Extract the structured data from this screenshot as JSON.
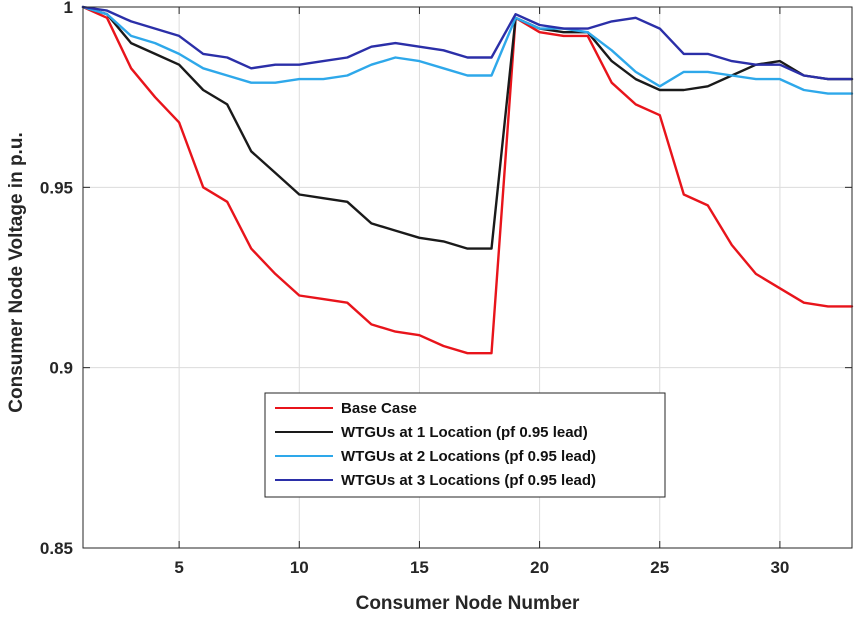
{
  "chart_data": {
    "type": "line",
    "title": "",
    "xlabel": "Consumer Node Number",
    "ylabel": "Consumer Node Voltage in p.u.",
    "xlim": [
      1,
      33
    ],
    "ylim": [
      0.85,
      1.0
    ],
    "grid": true,
    "xticks": [
      5,
      10,
      15,
      20,
      25,
      30
    ],
    "xtick_labels": [
      "5",
      "10",
      "15",
      "20",
      "25",
      "30"
    ],
    "yticks": [
      0.85,
      0.9,
      0.95,
      1.0
    ],
    "ytick_labels": [
      "0.85",
      "0.9",
      "0.95",
      "1"
    ],
    "legend_position": "bottom-center",
    "x": [
      1,
      2,
      3,
      4,
      5,
      6,
      7,
      8,
      9,
      10,
      11,
      12,
      13,
      14,
      15,
      16,
      17,
      18,
      19,
      20,
      21,
      22,
      23,
      24,
      25,
      26,
      27,
      28,
      29,
      30,
      31,
      32,
      33
    ],
    "series": [
      {
        "name": "Base Case",
        "color": "#e8141b",
        "values": [
          1.0,
          0.997,
          0.983,
          0.975,
          0.968,
          0.95,
          0.946,
          0.933,
          0.926,
          0.92,
          0.919,
          0.918,
          0.912,
          0.91,
          0.909,
          0.906,
          0.904,
          0.904,
          0.997,
          0.993,
          0.992,
          0.992,
          0.979,
          0.973,
          0.97,
          0.948,
          0.945,
          0.934,
          0.926,
          0.922,
          0.918,
          0.917,
          0.917
        ]
      },
      {
        "name": "WTGUs at 1 Location (pf 0.95 lead)",
        "color": "#1a1a1a",
        "values": [
          1.0,
          0.998,
          0.99,
          0.987,
          0.984,
          0.977,
          0.973,
          0.96,
          0.954,
          0.948,
          0.947,
          0.946,
          0.94,
          0.938,
          0.936,
          0.935,
          0.933,
          0.933,
          0.997,
          0.994,
          0.993,
          0.993,
          0.985,
          0.98,
          0.977,
          0.977,
          0.978,
          0.981,
          0.984,
          0.985,
          0.981,
          0.98,
          0.98
        ]
      },
      {
        "name": "WTGUs at 2 Locations (pf 0.95 lead)",
        "color": "#2ea8ea",
        "values": [
          1.0,
          0.998,
          0.992,
          0.99,
          0.987,
          0.983,
          0.981,
          0.979,
          0.979,
          0.98,
          0.98,
          0.981,
          0.984,
          0.986,
          0.985,
          0.983,
          0.981,
          0.981,
          0.997,
          0.994,
          0.994,
          0.993,
          0.988,
          0.982,
          0.978,
          0.982,
          0.982,
          0.981,
          0.98,
          0.98,
          0.977,
          0.976,
          0.976
        ]
      },
      {
        "name": "WTGUs at 3 Locations (pf 0.95 lead)",
        "color": "#2b2fa8",
        "values": [
          1.0,
          0.999,
          0.996,
          0.994,
          0.992,
          0.987,
          0.986,
          0.983,
          0.984,
          0.984,
          0.985,
          0.986,
          0.989,
          0.99,
          0.989,
          0.988,
          0.986,
          0.986,
          0.998,
          0.995,
          0.994,
          0.994,
          0.996,
          0.997,
          0.994,
          0.987,
          0.987,
          0.985,
          0.984,
          0.984,
          0.981,
          0.98,
          0.98
        ]
      }
    ]
  }
}
